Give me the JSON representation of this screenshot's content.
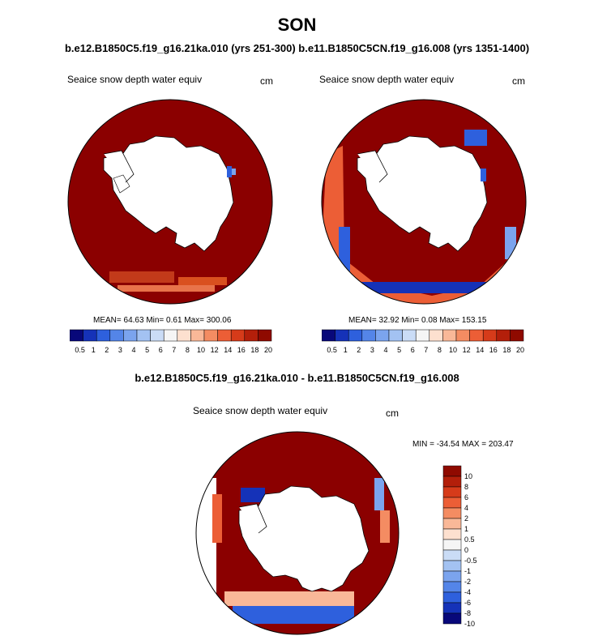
{
  "figure": {
    "title": "SON",
    "subtitle": "b.e12.B1850C5.f19_g16.21ka.010 (yrs 251-300) b.e11.B1850C5CN.f19_g16.008 (yrs 1351-1400)",
    "diff_title": "b.e12.B1850C5.f19_g16.21ka.010 - b.e11.B1850C5CN.f19_g16.008"
  },
  "panels": {
    "left": {
      "variable": "Seaice snow depth water equiv",
      "units": "cm",
      "stats": "MEAN=  64.63  Min=   0.61  Max= 300.06"
    },
    "right": {
      "variable": "Seaice snow depth water equiv",
      "units": "cm",
      "stats": "MEAN=  32.92  Min=   0.08  Max= 153.15"
    },
    "diff": {
      "variable": "Seaice snow depth water equiv",
      "units": "cm",
      "stats": "MIN = -34.54 MAX = 203.47"
    }
  },
  "chart_data": [
    {
      "type": "heatmap",
      "title": "Seaice snow depth water equiv",
      "units": "cm",
      "projection": "south-polar stereographic",
      "mean": 64.63,
      "min": 0.61,
      "max": 300.06,
      "colorbar_levels": [
        "0.5",
        "1",
        "2",
        "3",
        "4",
        "5",
        "6",
        "7",
        "8",
        "10",
        "12",
        "14",
        "16",
        "18",
        "20"
      ]
    },
    {
      "type": "heatmap",
      "title": "Seaice snow depth water equiv",
      "units": "cm",
      "projection": "south-polar stereographic",
      "mean": 32.92,
      "min": 0.08,
      "max": 153.15,
      "colorbar_levels": [
        "0.5",
        "1",
        "2",
        "3",
        "4",
        "5",
        "6",
        "7",
        "8",
        "10",
        "12",
        "14",
        "16",
        "18",
        "20"
      ]
    },
    {
      "type": "heatmap",
      "title": "Seaice snow depth water equiv",
      "units": "cm",
      "projection": "south-polar stereographic",
      "min": -34.54,
      "max": 203.47,
      "colorbar_levels": [
        "10",
        "8",
        "6",
        "4",
        "2",
        "1",
        "0.5",
        "0",
        "-0.5",
        "-1",
        "-2",
        "-4",
        "-6",
        "-8",
        "-10"
      ]
    }
  ],
  "colors": {
    "seq": [
      "#08087a",
      "#1532b8",
      "#2e60dd",
      "#5485e8",
      "#7ba4ee",
      "#a3c2f2",
      "#cadcf6",
      "#f5f5f5",
      "#fde0cf",
      "#f9b898",
      "#f48c62",
      "#ec5e36",
      "#d63b1a",
      "#b31f0a",
      "#8f0a00"
    ],
    "div": [
      "#8f0a00",
      "#b31f0a",
      "#d63b1a",
      "#ec5e36",
      "#f48c62",
      "#f9b898",
      "#fde0cf",
      "#f5f5f5",
      "#cadcf6",
      "#a3c2f2",
      "#7ba4ee",
      "#5485e8",
      "#2e60dd",
      "#1532b8",
      "#08087a"
    ],
    "dark_red": "#8b0000"
  }
}
